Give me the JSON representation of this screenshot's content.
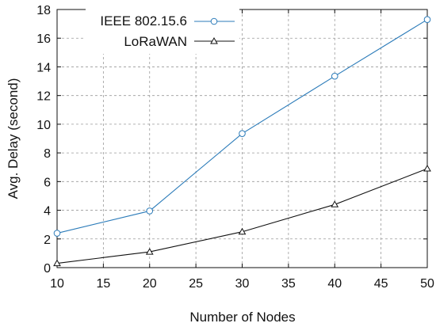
{
  "chart_data": {
    "type": "line",
    "xlabel": "Number of Nodes",
    "ylabel": "Avg. Delay (second)",
    "xlim": [
      10,
      50
    ],
    "ylim": [
      0,
      18
    ],
    "xticks": [
      "10",
      "15",
      "20",
      "25",
      "30",
      "35",
      "40",
      "45",
      "50"
    ],
    "yticks": [
      "0",
      "2",
      "4",
      "6",
      "8",
      "10",
      "12",
      "14",
      "16",
      "18"
    ],
    "grid": "dashed",
    "legend_position": "top-left",
    "x": [
      10,
      20,
      30,
      40,
      50
    ],
    "series": [
      {
        "name": "IEEE 802.15.6",
        "values": [
          2.4,
          3.95,
          9.35,
          13.35,
          17.3
        ],
        "color": "#2b7bb9",
        "marker": "circle"
      },
      {
        "name": "LoRaWAN",
        "values": [
          0.3,
          1.1,
          2.5,
          4.4,
          6.9
        ],
        "color": "#111111",
        "marker": "triangle"
      }
    ]
  }
}
